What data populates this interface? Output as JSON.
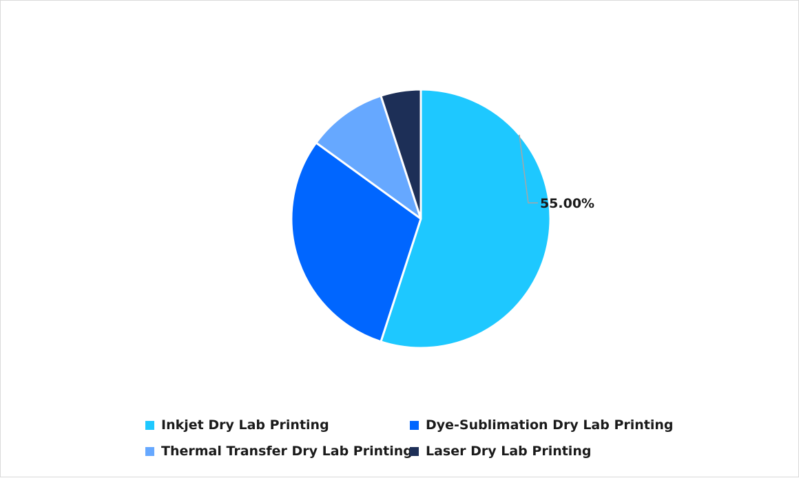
{
  "chart_data": {
    "type": "pie",
    "title": "",
    "categories": [
      "Inkjet Dry Lab Printing",
      "Dye-Sublimation Dry Lab Printing",
      "Thermal Transfer Dry Lab Printing",
      "Laser Dry Lab Printing"
    ],
    "values": [
      55,
      30,
      10,
      5
    ],
    "colors": [
      "#1ec8ff",
      "#0066ff",
      "#66a8ff",
      "#1d2f57"
    ],
    "data_labels": [
      "55.00%",
      "",
      "",
      ""
    ],
    "legend_position": "bottom"
  }
}
